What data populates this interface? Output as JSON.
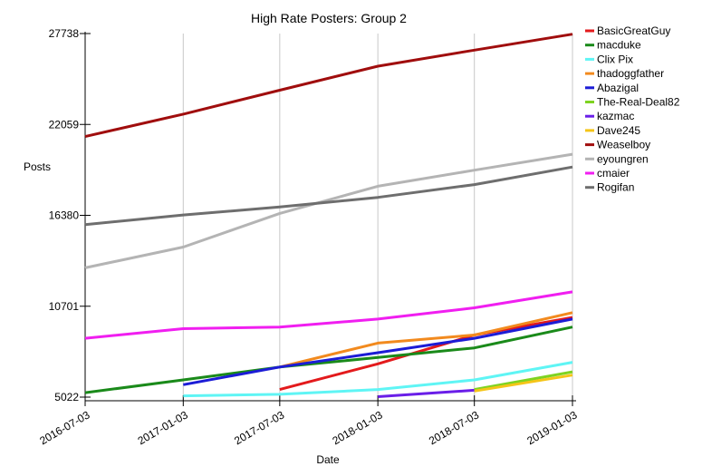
{
  "chart_data": {
    "type": "line",
    "title": "High Rate Posters: Group 2",
    "xlabel": "Date",
    "ylabel": "Posts",
    "x": [
      "2016-07-03",
      "2017-01-03",
      "2017-07-03",
      "2018-01-03",
      "2018-07-03",
      "2019-01-03"
    ],
    "xlim": [
      "2016-07-03",
      "2019-01-03"
    ],
    "ylim": [
      5022,
      27738
    ],
    "yticks": [
      5022,
      10701,
      16380,
      22059,
      27738
    ],
    "grid": "vertical",
    "legend_position": "right",
    "series": [
      {
        "name": "BasicGreatGuy",
        "color": "#e31a1c",
        "values": [
          null,
          null,
          5500,
          7100,
          8900,
          10000
        ]
      },
      {
        "name": "macduke",
        "color": "#1a8a1a",
        "values": [
          5300,
          6100,
          6900,
          7500,
          8100,
          9400
        ]
      },
      {
        "name": "Clix Pix",
        "color": "#5ff5f5",
        "values": [
          null,
          5100,
          5200,
          5500,
          6100,
          7200
        ]
      },
      {
        "name": "thadoggfather",
        "color": "#f28a1e",
        "values": [
          null,
          null,
          6900,
          8400,
          8900,
          10300
        ]
      },
      {
        "name": "Abazigal",
        "color": "#1c1cd6",
        "values": [
          null,
          5800,
          6900,
          7800,
          8700,
          9900
        ]
      },
      {
        "name": "The-Real-Deal82",
        "color": "#7ed321",
        "values": [
          null,
          null,
          null,
          null,
          5500,
          6600
        ]
      },
      {
        "name": "kazmac",
        "color": "#6a1ee8",
        "values": [
          null,
          null,
          null,
          5050,
          5450,
          null
        ]
      },
      {
        "name": "Dave245",
        "color": "#f5c518",
        "values": [
          null,
          null,
          null,
          null,
          5400,
          6400
        ]
      },
      {
        "name": "Weaselboy",
        "color": "#a00d0d",
        "values": [
          21300,
          22700,
          24200,
          25700,
          26700,
          27700
        ]
      },
      {
        "name": "eyoungren",
        "color": "#b4b4b4",
        "values": [
          13100,
          14400,
          16500,
          18200,
          19200,
          20200
        ]
      },
      {
        "name": "cmaier",
        "color": "#f01ef0",
        "values": [
          8700,
          9300,
          9400,
          9900,
          10600,
          11600
        ]
      },
      {
        "name": "Rogifan",
        "color": "#6e6e6e",
        "values": [
          15800,
          16400,
          16900,
          17500,
          18300,
          19400
        ]
      }
    ]
  }
}
